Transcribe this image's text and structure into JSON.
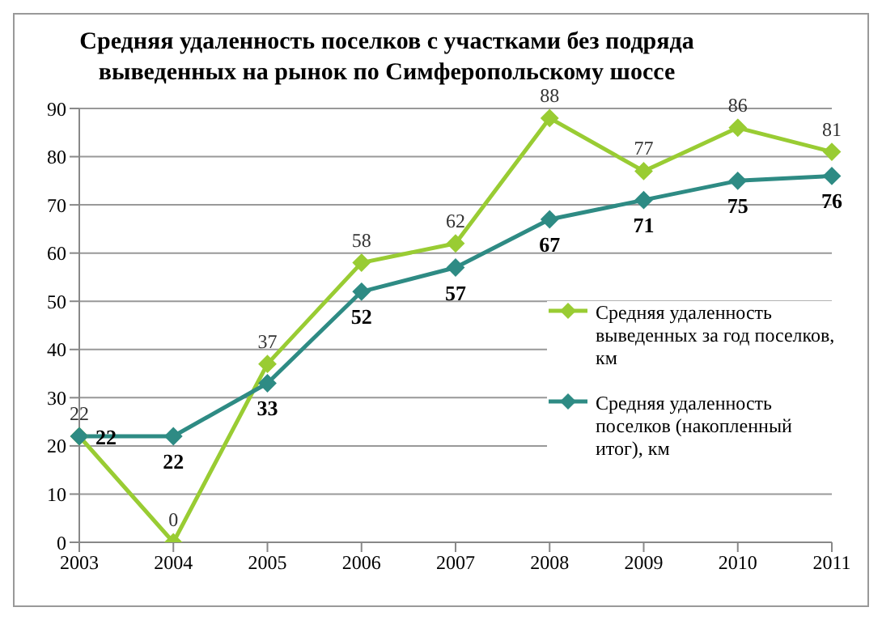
{
  "chart_data": {
    "type": "line",
    "title": "Средняя удаленность поселков с участками без подряда выведенных на рынок по Симферопольскому шоссе",
    "categories": [
      "2003",
      "2004",
      "2005",
      "2006",
      "2007",
      "2008",
      "2009",
      "2010",
      "2011"
    ],
    "series": [
      {
        "name": "Средняя удаленность выведенных за год поселков, км",
        "color": "#99cc33",
        "values": [
          22,
          0,
          37,
          58,
          62,
          88,
          77,
          86,
          81
        ]
      },
      {
        "name": "Средняя удаленность поселков (накопленный итог), км",
        "color": "#2e8b84",
        "values": [
          22,
          22,
          33,
          52,
          57,
          67,
          71,
          75,
          76
        ]
      }
    ],
    "ylim": [
      0,
      90
    ],
    "yticks": [
      0,
      10,
      20,
      30,
      40,
      50,
      60,
      70,
      80,
      90
    ],
    "grid": "y",
    "legend": "right",
    "marker": "diamond",
    "data_labels": true
  }
}
